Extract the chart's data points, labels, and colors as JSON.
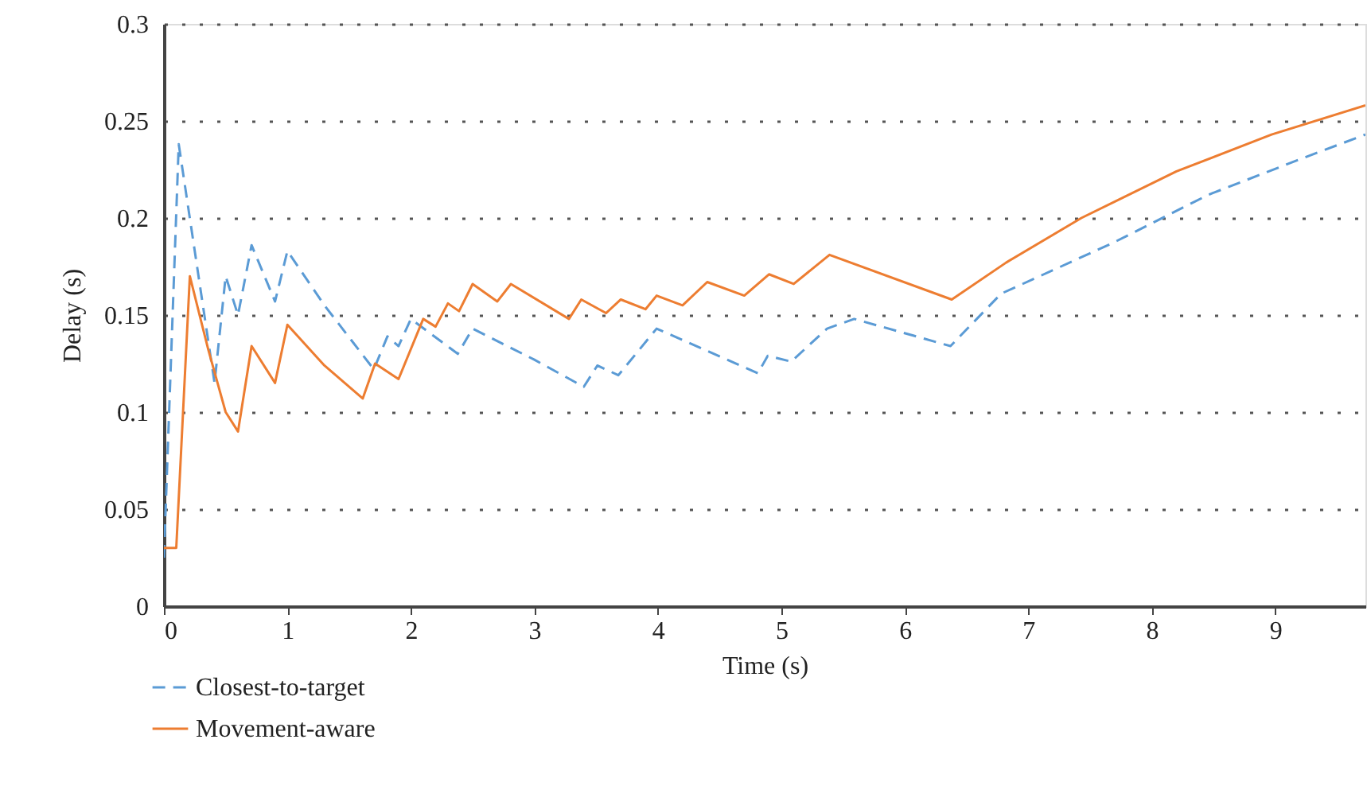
{
  "chart_data": {
    "type": "line",
    "xlabel": "Time (s)",
    "ylabel": "Delay (s)",
    "xlim": [
      0,
      9.73
    ],
    "xticks": [
      0,
      1,
      2,
      3,
      4,
      5,
      6,
      7,
      8,
      9
    ],
    "ylim": [
      0,
      0.3
    ],
    "yticks": [
      0,
      0.05,
      0.1,
      0.15,
      0.2,
      0.25,
      0.3
    ],
    "grid": "y",
    "legend": "bottom left",
    "marker": "none",
    "series": [
      {
        "name": "Closest-to-target",
        "color": "#5b9bd5",
        "line_style": "dashed",
        "x": [
          0,
          0.12,
          0.41,
          0.5,
          0.6,
          0.71,
          0.9,
          1.0,
          1.3,
          1.7,
          1.81,
          1.9,
          2.0,
          2.38,
          2.5,
          3.0,
          3.4,
          3.51,
          3.68,
          3.99,
          4.81,
          4.89,
          5.08,
          5.37,
          5.59,
          6.37,
          6.78,
          7.68,
          8.46,
          9.19,
          9.73
        ],
        "values": [
          0.025,
          0.238,
          0.115,
          0.17,
          0.15,
          0.186,
          0.157,
          0.183,
          0.155,
          0.122,
          0.139,
          0.134,
          0.148,
          0.13,
          0.143,
          0.127,
          0.113,
          0.124,
          0.119,
          0.143,
          0.12,
          0.129,
          0.126,
          0.143,
          0.148,
          0.134,
          0.161,
          0.187,
          0.212,
          0.23,
          0.243
        ]
      },
      {
        "name": "Movement-aware",
        "color": "#ed7d31",
        "line_style": "solid",
        "x": [
          0,
          0.1,
          0.21,
          0.36,
          0.5,
          0.6,
          0.71,
          0.9,
          1.0,
          1.3,
          1.61,
          1.71,
          1.9,
          2.1,
          2.2,
          2.3,
          2.39,
          2.5,
          2.7,
          2.81,
          3.28,
          3.38,
          3.58,
          3.7,
          3.9,
          3.99,
          4.2,
          4.4,
          4.7,
          4.9,
          5.1,
          5.39,
          6.38,
          6.82,
          7.43,
          8.2,
          8.97,
          9.73
        ],
        "values": [
          0.03,
          0.03,
          0.17,
          0.132,
          0.1,
          0.09,
          0.134,
          0.115,
          0.145,
          0.124,
          0.107,
          0.125,
          0.117,
          0.148,
          0.144,
          0.156,
          0.152,
          0.166,
          0.157,
          0.166,
          0.148,
          0.158,
          0.151,
          0.158,
          0.153,
          0.16,
          0.155,
          0.167,
          0.16,
          0.171,
          0.166,
          0.181,
          0.158,
          0.177,
          0.2,
          0.224,
          0.243,
          0.258
        ]
      }
    ]
  }
}
